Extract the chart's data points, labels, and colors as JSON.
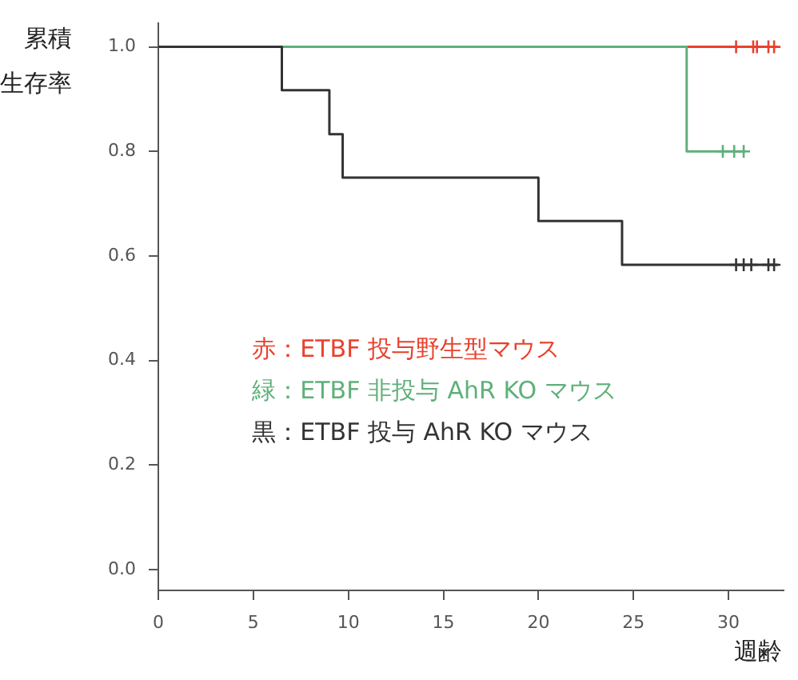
{
  "chart_data": {
    "type": "step",
    "xlabel": "週齢",
    "ylabel": "累積生存率",
    "xlim": [
      0,
      32.9
    ],
    "xticks": [
      0,
      5,
      10,
      15,
      20,
      25,
      30
    ],
    "ylim": [
      -0.04,
      1.045
    ],
    "yticks": [
      {
        "value": 0,
        "label": "0.0"
      },
      0.2,
      0.4,
      0.6,
      0.8,
      {
        "value": 1,
        "label": "1.0"
      }
    ],
    "grid": false,
    "legend": "bottom left",
    "series": [
      {
        "name": "赤：ETBF 投与野生型マウス",
        "color": "#e8412c",
        "x": [
          27.8,
          32.6
        ],
        "values": [
          1,
          1
        ],
        "marker": "none"
      },
      {
        "name": "緑：ETBF 非投与 AhR KO マウス",
        "color": "#5fb07a",
        "x": [
          0,
          27.8,
          30.9
        ],
        "values": [
          1,
          0.8,
          0.8
        ],
        "marker": "none"
      },
      {
        "name": "黒：ETBF 投与 AhR KO マウス",
        "color": "#333333",
        "x": [
          0,
          6.5,
          9,
          9.7,
          20,
          24.4,
          32.6
        ],
        "values": [
          1,
          0.917,
          0.833,
          0.75,
          0.667,
          0.583,
          0.583
        ],
        "marker": "none"
      },
      {
        "type": "scatter",
        "color": "#e8412c",
        "x": [
          30.4,
          31.3,
          31.5,
          32.1,
          32.4
        ],
        "values": [
          1,
          1,
          1,
          1,
          1
        ],
        "marker": "cross"
      },
      {
        "type": "scatter",
        "color": "#5fb07a",
        "x": [
          29.7,
          30.3,
          30.8
        ],
        "values": [
          0.8,
          0.8,
          0.8
        ],
        "marker": "cross"
      },
      {
        "type": "scatter",
        "color": "#333333",
        "x": [
          30.4,
          30.8,
          31.2,
          32.1,
          32.4
        ],
        "values": [
          0.583,
          0.583,
          0.583,
          0.583,
          0.583
        ],
        "marker": "cross"
      }
    ]
  }
}
